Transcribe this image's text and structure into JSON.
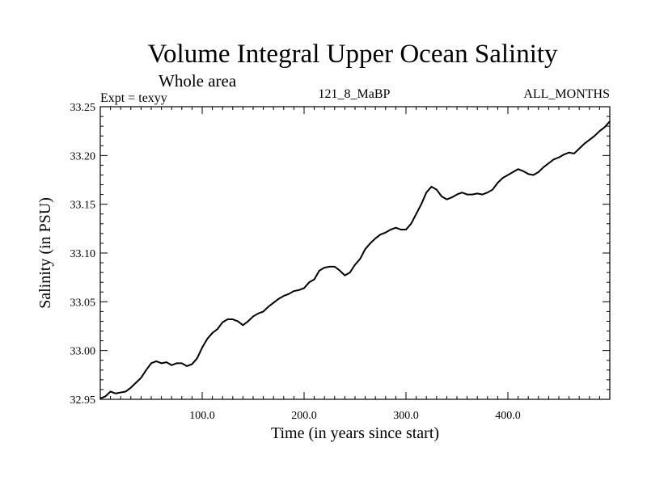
{
  "chart_data": {
    "type": "line",
    "title": "Volume Integral Upper Ocean Salinity",
    "subtitle": "Whole area",
    "experiment_label": "Expt = texyy",
    "run_label": "121_8_MaBP",
    "months_label": "ALL_MONTHS",
    "xlabel": "Time (in years since start)",
    "ylabel": "Salinity (in PSU)",
    "xlim": [
      0,
      500
    ],
    "ylim": [
      32.95,
      33.25
    ],
    "x_ticks": [
      100,
      200,
      300,
      400
    ],
    "x_tick_labels": [
      "100.0",
      "200.0",
      "300.0",
      "400.0"
    ],
    "y_ticks": [
      32.95,
      33.0,
      33.05,
      33.1,
      33.15,
      33.2,
      33.25
    ],
    "y_tick_labels": [
      "32.95",
      "33.00",
      "33.05",
      "33.10",
      "33.15",
      "33.20",
      "33.25"
    ],
    "grid": false,
    "series": [
      {
        "name": "",
        "color": "#000000",
        "x": [
          0,
          5,
          10,
          15,
          20,
          25,
          30,
          35,
          40,
          45,
          50,
          55,
          60,
          65,
          70,
          75,
          80,
          85,
          90,
          95,
          100,
          105,
          110,
          115,
          120,
          125,
          130,
          135,
          140,
          145,
          150,
          155,
          160,
          165,
          170,
          175,
          180,
          185,
          190,
          195,
          200,
          205,
          210,
          215,
          220,
          225,
          230,
          235,
          240,
          245,
          250,
          255,
          260,
          265,
          270,
          275,
          280,
          285,
          290,
          295,
          300,
          305,
          310,
          315,
          320,
          325,
          330,
          335,
          340,
          345,
          350,
          355,
          360,
          365,
          370,
          375,
          380,
          385,
          390,
          395,
          400,
          405,
          410,
          415,
          420,
          425,
          430,
          435,
          440,
          445,
          450,
          455,
          460,
          465,
          470,
          475,
          480,
          485,
          490,
          495,
          500
        ],
        "y": [
          32.951,
          32.953,
          32.958,
          32.956,
          32.957,
          32.958,
          32.962,
          32.967,
          32.972,
          32.98,
          32.987,
          32.989,
          32.987,
          32.988,
          32.985,
          32.987,
          32.987,
          32.984,
          32.986,
          32.992,
          33.003,
          33.012,
          33.018,
          33.022,
          33.029,
          33.032,
          33.032,
          33.03,
          33.026,
          33.03,
          33.035,
          33.038,
          33.04,
          33.045,
          33.049,
          33.053,
          33.056,
          33.058,
          33.061,
          33.062,
          33.064,
          33.07,
          33.073,
          33.082,
          33.085,
          33.086,
          33.086,
          33.082,
          33.077,
          33.08,
          33.088,
          33.094,
          33.104,
          33.11,
          33.115,
          33.119,
          33.121,
          33.124,
          33.126,
          33.124,
          33.124,
          33.13,
          33.14,
          33.15,
          33.162,
          33.168,
          33.165,
          33.158,
          33.155,
          33.157,
          33.16,
          33.162,
          33.16,
          33.16,
          33.161,
          33.16,
          33.162,
          33.165,
          33.172,
          33.177,
          33.18,
          33.183,
          33.186,
          33.184,
          33.181,
          33.18,
          33.183,
          33.188,
          33.192,
          33.196,
          33.198,
          33.201,
          33.203,
          33.202,
          33.207,
          33.212,
          33.216,
          33.22,
          33.225,
          33.229,
          33.235
        ]
      }
    ]
  }
}
